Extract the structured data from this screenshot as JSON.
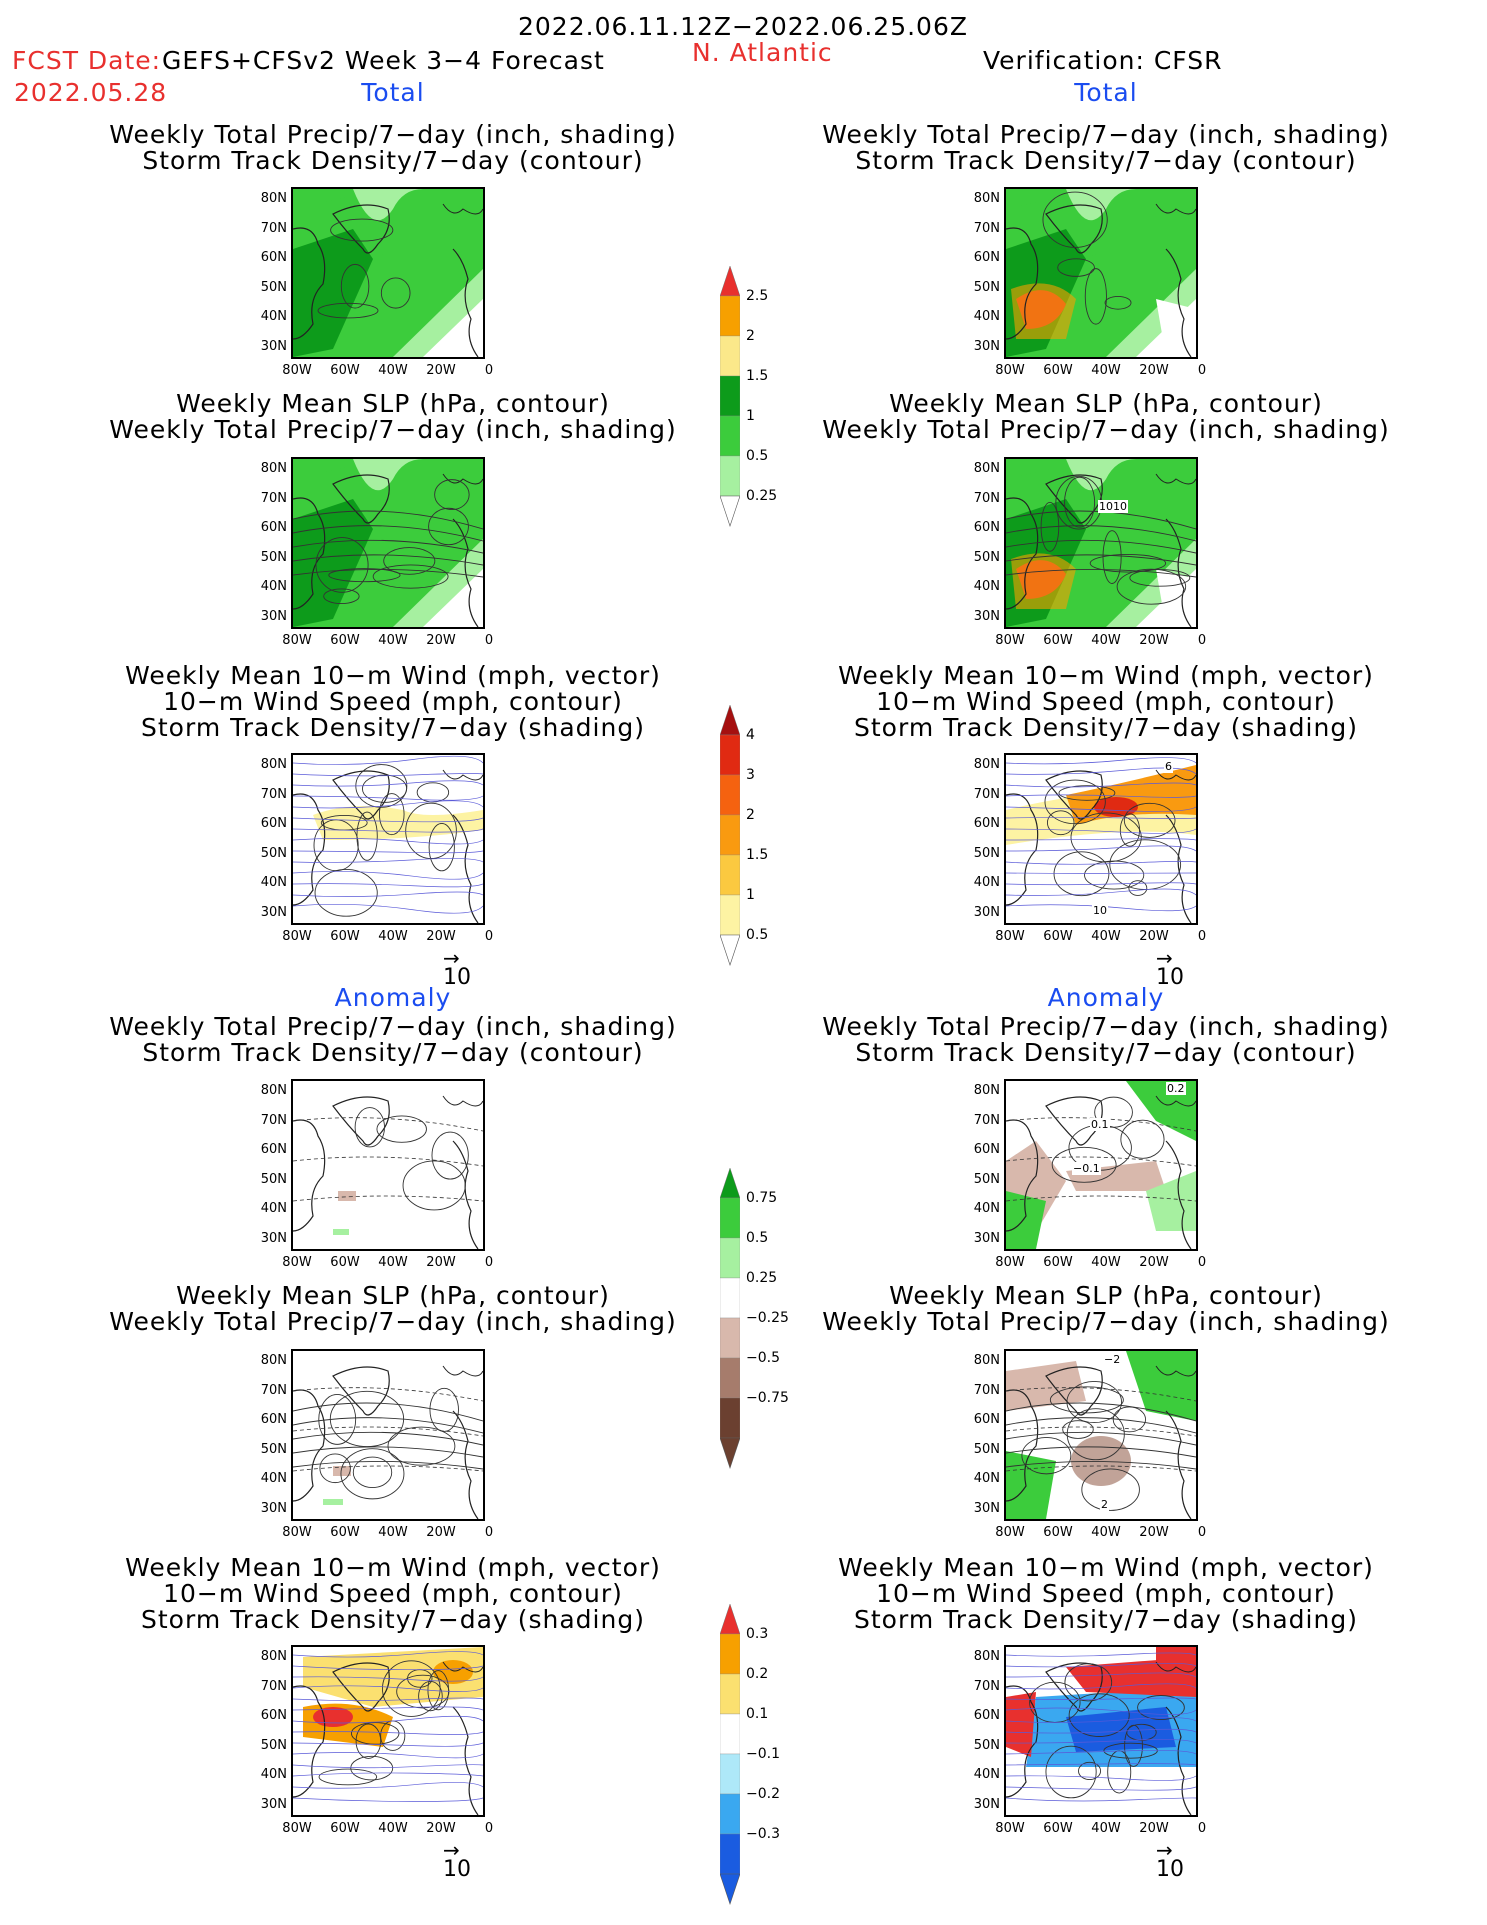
{
  "header": {
    "date_range": "2022.06.11.12Z−2022.06.25.06Z",
    "fcst_label": "FCST Date:",
    "model": "GEFS+CFSv2 Week 3−4 Forecast",
    "fcst_date": "2022.05.28",
    "region": "N. Atlantic",
    "verification": "Verification: CFSR"
  },
  "sections": {
    "total": "Total",
    "anomaly": "Anomaly"
  },
  "panel_titles": {
    "p1": [
      "Weekly Total Precip/7−day (inch, shading)",
      "Storm Track Density/7−day (contour)"
    ],
    "p2": [
      "Weekly Mean SLP (hPa, contour)",
      "Weekly Total Precip/7−day (inch, shading)"
    ],
    "p3": [
      "Weekly Mean 10−m Wind (mph, vector)",
      "10−m Wind Speed (mph, contour)",
      "Storm Track Density/7−day (shading)"
    ]
  },
  "axes": {
    "lat": [
      "80N",
      "70N",
      "60N",
      "50N",
      "40N",
      "30N"
    ],
    "lon": [
      "80W",
      "60W",
      "40W",
      "20W",
      "0"
    ]
  },
  "vector_ref": "10",
  "contour_labels": {
    "slp_obs": "1010",
    "anom_a": "0.1",
    "anom_b": "−0.1",
    "anom_c": "0.2",
    "anom_d": "−2",
    "anom_e": "2",
    "wind_a": "6",
    "wind_b": "10"
  },
  "colorbars": {
    "precip": {
      "labels": [
        "2.5",
        "2",
        "1.5",
        "1",
        "0.5",
        "0.25"
      ],
      "colors": [
        "#e8302e",
        "#f7a000",
        "#fbe88a",
        "#0d9b1b",
        "#3ccc3c",
        "#a6f0a0"
      ]
    },
    "storm": {
      "labels": [
        "4",
        "3",
        "2",
        "1.5",
        "1",
        "0.5"
      ],
      "colors": [
        "#a51010",
        "#e02a12",
        "#f56210",
        "#f99a10",
        "#fbc940",
        "#fdf3a3"
      ]
    },
    "precip_anom": {
      "labels": [
        "0.75",
        "0.5",
        "0.25",
        "−0.25",
        "−0.5",
        "−0.75"
      ],
      "colors": [
        "#0d9b1b",
        "#3ccc3c",
        "#a6f0a0",
        "#ffffff",
        "#d8b8ac",
        "#a67c6c",
        "#6b4030"
      ]
    },
    "storm_anom": {
      "labels": [
        "0.3",
        "0.2",
        "0.1",
        "−0.1",
        "−0.2",
        "−0.3"
      ],
      "colors": [
        "#e8302e",
        "#f7a000",
        "#fbe070",
        "#ffffff",
        "#aee8f8",
        "#3aa8f0",
        "#1a5ce0"
      ]
    }
  }
}
